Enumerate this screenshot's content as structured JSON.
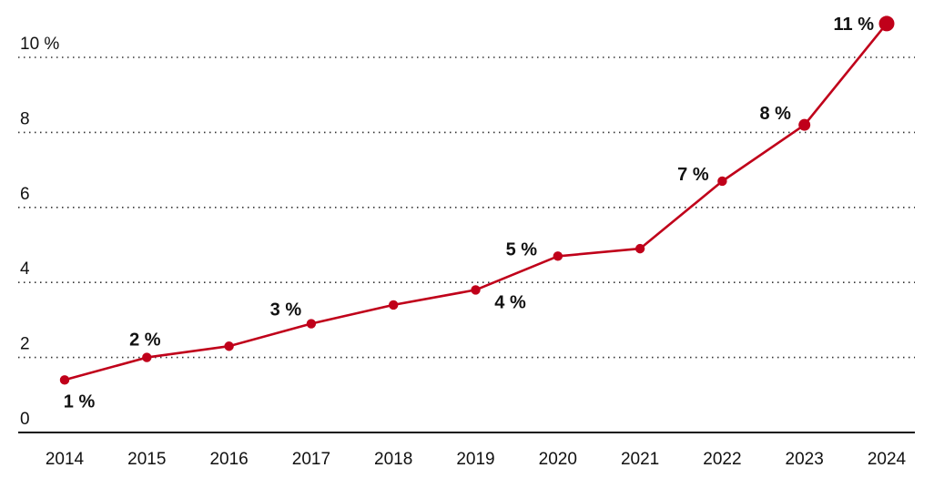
{
  "chart_data": {
    "type": "line",
    "title": "",
    "xlabel": "",
    "ylabel": "",
    "x": [
      "2014",
      "2015",
      "2016",
      "2017",
      "2018",
      "2019",
      "2020",
      "2021",
      "2022",
      "2023",
      "2024"
    ],
    "ylim": [
      0,
      11
    ],
    "yticks": [
      0,
      2,
      4,
      6,
      8,
      10
    ],
    "ytick_labels": [
      "0",
      "2",
      "4",
      "6",
      "8",
      "10 %"
    ],
    "grid": true,
    "series": [
      {
        "values": [
          1.4,
          2.0,
          2.3,
          2.9,
          3.4,
          3.8,
          4.7,
          4.9,
          6.7,
          8.2,
          10.9
        ],
        "color": "#c0001a"
      }
    ],
    "data_labels": [
      {
        "index": 0,
        "text": "1 %",
        "pos": "below"
      },
      {
        "index": 1,
        "text": "2 %",
        "pos": "above"
      },
      {
        "index": 3,
        "text": "3 %",
        "pos": "above-left"
      },
      {
        "index": 5,
        "text": "4 %",
        "pos": "below-right"
      },
      {
        "index": 6,
        "text": "5 %",
        "pos": "above-left"
      },
      {
        "index": 8,
        "text": "7 %",
        "pos": "above-left"
      },
      {
        "index": 9,
        "text": "8 %",
        "pos": "above-left"
      },
      {
        "index": 10,
        "text": "11 %",
        "pos": "left"
      }
    ]
  }
}
